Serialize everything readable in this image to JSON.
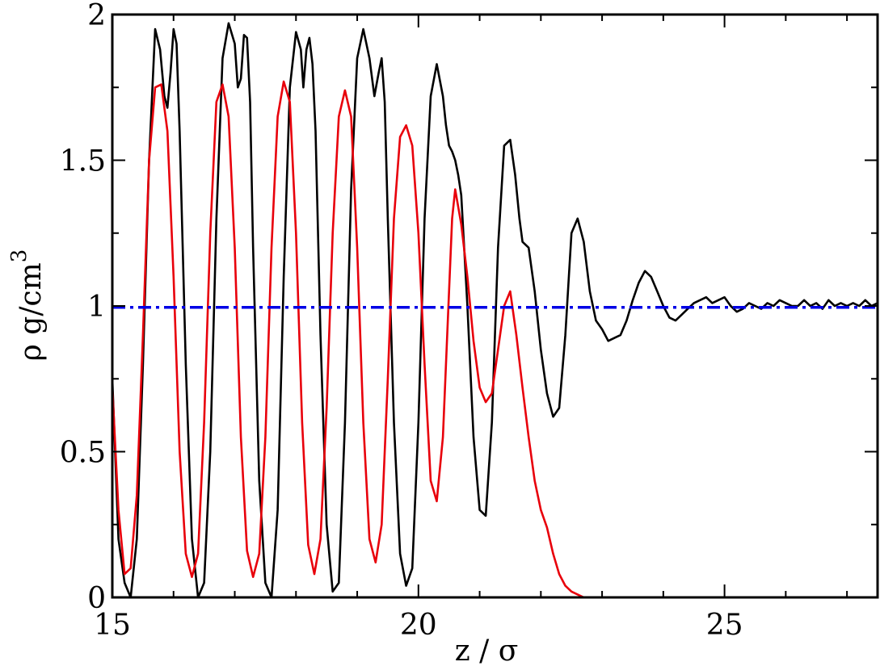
{
  "chart_data": {
    "type": "line",
    "title": "",
    "xlabel": "z / σ",
    "ylabel_main": "ρ g/cm",
    "ylabel_sup": "3",
    "xlim": [
      15,
      27.5
    ],
    "ylim": [
      0,
      2
    ],
    "xticks": [
      15,
      20,
      25
    ],
    "xtick_labels": [
      "15",
      "20",
      "25"
    ],
    "yticks": [
      0,
      0.5,
      1,
      1.5,
      2
    ],
    "ytick_labels": [
      "0",
      "0.5",
      "1",
      "1.5",
      "2"
    ],
    "grid": false,
    "legend": "none",
    "series": [
      {
        "color": "#000000",
        "style": "solid",
        "x": [
          15.0,
          15.1,
          15.2,
          15.3,
          15.4,
          15.5,
          15.6,
          15.7,
          15.78,
          15.85,
          15.9,
          15.95,
          16.0,
          16.05,
          16.1,
          16.2,
          16.3,
          16.4,
          16.5,
          16.6,
          16.7,
          16.8,
          16.9,
          17.0,
          17.05,
          17.1,
          17.15,
          17.2,
          17.25,
          17.3,
          17.4,
          17.5,
          17.6,
          17.7,
          17.8,
          17.9,
          18.0,
          18.08,
          18.12,
          18.17,
          18.22,
          18.27,
          18.32,
          18.4,
          18.5,
          18.6,
          18.7,
          18.8,
          18.9,
          19.0,
          19.1,
          19.2,
          19.28,
          19.35,
          19.4,
          19.45,
          19.5,
          19.6,
          19.7,
          19.8,
          19.9,
          20.0,
          20.1,
          20.2,
          20.3,
          20.4,
          20.45,
          20.5,
          20.55,
          20.6,
          20.65,
          20.7,
          20.8,
          20.9,
          21.0,
          21.1,
          21.2,
          21.3,
          21.4,
          21.5,
          21.58,
          21.65,
          21.7,
          21.8,
          21.9,
          22.0,
          22.1,
          22.2,
          22.3,
          22.4,
          22.5,
          22.6,
          22.7,
          22.8,
          22.9,
          23.0,
          23.1,
          23.2,
          23.3,
          23.4,
          23.5,
          23.6,
          23.7,
          23.8,
          23.9,
          24.0,
          24.1,
          24.2,
          24.3,
          24.4,
          24.5,
          24.6,
          24.7,
          24.8,
          24.9,
          25.0,
          25.1,
          25.2,
          25.3,
          25.4,
          25.5,
          25.6,
          25.7,
          25.8,
          25.9,
          26.0,
          26.1,
          26.2,
          26.3,
          26.4,
          26.5,
          26.6,
          26.7,
          26.8,
          26.9,
          27.0,
          27.1,
          27.2,
          27.3,
          27.4,
          27.5
        ],
        "y": [
          0.75,
          0.2,
          0.05,
          0.0,
          0.2,
          0.8,
          1.5,
          1.95,
          1.88,
          1.72,
          1.68,
          1.8,
          1.95,
          1.9,
          1.6,
          0.8,
          0.2,
          0.0,
          0.05,
          0.5,
          1.3,
          1.85,
          1.97,
          1.9,
          1.75,
          1.78,
          1.93,
          1.92,
          1.7,
          1.2,
          0.4,
          0.05,
          0.0,
          0.3,
          1.1,
          1.75,
          1.94,
          1.88,
          1.75,
          1.88,
          1.92,
          1.83,
          1.6,
          0.9,
          0.25,
          0.02,
          0.05,
          0.6,
          1.4,
          1.85,
          1.95,
          1.85,
          1.72,
          1.8,
          1.85,
          1.7,
          1.3,
          0.6,
          0.15,
          0.04,
          0.1,
          0.6,
          1.3,
          1.72,
          1.83,
          1.72,
          1.62,
          1.55,
          1.53,
          1.5,
          1.45,
          1.38,
          1.0,
          0.55,
          0.3,
          0.28,
          0.6,
          1.2,
          1.55,
          1.57,
          1.45,
          1.3,
          1.22,
          1.2,
          1.05,
          0.85,
          0.7,
          0.62,
          0.65,
          0.9,
          1.25,
          1.3,
          1.22,
          1.05,
          0.95,
          0.92,
          0.88,
          0.89,
          0.9,
          0.95,
          1.02,
          1.08,
          1.12,
          1.1,
          1.05,
          1.0,
          0.96,
          0.95,
          0.97,
          0.99,
          1.01,
          1.02,
          1.03,
          1.01,
          1.02,
          1.03,
          1.0,
          0.98,
          0.99,
          1.01,
          1.0,
          0.99,
          1.01,
          1.0,
          1.02,
          1.01,
          1.0,
          1.0,
          1.02,
          1.0,
          1.01,
          0.99,
          1.02,
          1.0,
          1.01,
          1.0,
          1.01,
          1.0,
          1.02,
          1.0,
          1.01
        ]
      },
      {
        "color": "#e8000b",
        "style": "solid",
        "x": [
          15.0,
          15.1,
          15.2,
          15.3,
          15.4,
          15.5,
          15.6,
          15.7,
          15.8,
          15.9,
          16.0,
          16.1,
          16.2,
          16.3,
          16.4,
          16.5,
          16.6,
          16.7,
          16.8,
          16.9,
          17.0,
          17.1,
          17.2,
          17.3,
          17.4,
          17.5,
          17.6,
          17.7,
          17.8,
          17.9,
          18.0,
          18.1,
          18.2,
          18.3,
          18.4,
          18.5,
          18.6,
          18.7,
          18.8,
          18.9,
          19.0,
          19.1,
          19.2,
          19.3,
          19.4,
          19.5,
          19.6,
          19.7,
          19.8,
          19.9,
          20.0,
          20.1,
          20.2,
          20.3,
          20.4,
          20.5,
          20.55,
          20.6,
          20.7,
          20.8,
          20.9,
          21.0,
          21.1,
          21.2,
          21.3,
          21.4,
          21.5,
          21.6,
          21.7,
          21.8,
          21.9,
          22.0,
          22.1,
          22.2,
          22.3,
          22.4,
          22.5,
          22.6,
          22.7,
          22.8,
          22.9,
          23.0,
          23.2,
          23.4,
          23.6,
          23.8,
          24.0,
          24.2,
          24.4,
          24.6,
          24.8,
          25.0
        ],
        "y": [
          0.72,
          0.3,
          0.08,
          0.1,
          0.35,
          0.9,
          1.5,
          1.75,
          1.76,
          1.6,
          1.1,
          0.5,
          0.15,
          0.07,
          0.15,
          0.6,
          1.25,
          1.7,
          1.76,
          1.65,
          1.2,
          0.55,
          0.16,
          0.07,
          0.15,
          0.55,
          1.2,
          1.65,
          1.77,
          1.7,
          1.25,
          0.6,
          0.18,
          0.08,
          0.2,
          0.65,
          1.25,
          1.65,
          1.74,
          1.65,
          1.2,
          0.6,
          0.2,
          0.12,
          0.25,
          0.75,
          1.3,
          1.58,
          1.62,
          1.55,
          1.25,
          0.8,
          0.4,
          0.33,
          0.55,
          1.05,
          1.3,
          1.4,
          1.28,
          1.1,
          0.88,
          0.72,
          0.67,
          0.7,
          0.85,
          1.0,
          1.05,
          0.9,
          0.72,
          0.55,
          0.4,
          0.3,
          0.24,
          0.15,
          0.08,
          0.04,
          0.02,
          0.01,
          0.0,
          0.0,
          0.0,
          0.0,
          0.0,
          0.0,
          0.0,
          0.0,
          0.0,
          0.0,
          0.0,
          0.0,
          0.0,
          0.0
        ]
      },
      {
        "color": "#0000e6",
        "style": "dash-dot",
        "x": [
          15,
          27.5
        ],
        "y": [
          0.995,
          0.995
        ]
      }
    ]
  }
}
